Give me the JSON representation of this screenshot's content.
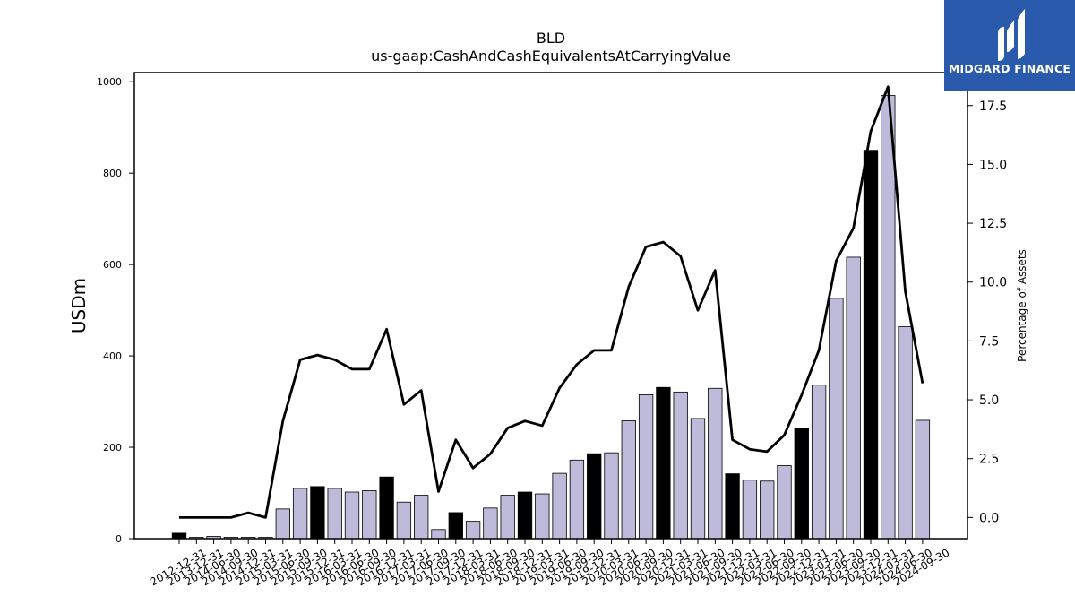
{
  "logo": {
    "name": "MIDGARD FINANCE",
    "bg_color": "#2a5aab"
  },
  "chart_data": {
    "type": "bar",
    "title": "BLD",
    "subtitle": "us-gaap:CashAndCashEquivalentsAtCarryingValue",
    "ylabel": "USDm",
    "y2label": "Percentage of Assets",
    "ylim": [
      0,
      1020
    ],
    "y2lim": [
      -0.9,
      18.9
    ],
    "yticks": [
      0,
      200,
      400,
      600,
      800,
      1000
    ],
    "y2ticks": [
      "0.0",
      "2.5",
      "5.0",
      "7.5",
      "10.0",
      "12.5",
      "15.0",
      "17.5"
    ],
    "categories": [
      "2012-12-31",
      "2013-12-31",
      "2014-06-30",
      "2014-09-30",
      "2014-12-31",
      "2015-03-31",
      "2015-06-30",
      "2015-09-30",
      "2015-12-31",
      "2016-03-31",
      "2016-06-30",
      "2016-09-30",
      "2016-12-31",
      "2017-03-31",
      "2017-06-30",
      "2017-09-30",
      "2017-12-31",
      "2018-03-31",
      "2018-06-30",
      "2018-09-30",
      "2018-12-31",
      "2019-03-31",
      "2019-06-30",
      "2019-09-30",
      "2019-12-31",
      "2020-03-31",
      "2020-06-30",
      "2020-09-30",
      "2020-12-31",
      "2021-03-31",
      "2021-06-30",
      "2021-09-30",
      "2021-12-31",
      "2022-03-31",
      "2022-06-30",
      "2022-09-30",
      "2022-12-31",
      "2023-03-31",
      "2023-06-30",
      "2023-09-30",
      "2023-12-31",
      "2024-03-31",
      "2024-06-30",
      "2024-09-30"
    ],
    "series": [
      {
        "kind": "bar",
        "values": [
          12,
          3,
          5,
          3,
          3,
          3,
          65,
          110,
          114,
          110,
          102,
          105,
          135,
          80,
          95,
          20,
          57,
          38,
          67,
          95,
          102,
          98,
          143,
          172,
          186,
          188,
          258,
          315,
          331,
          321,
          263,
          329,
          142,
          128,
          126,
          160,
          242,
          336,
          526,
          616,
          850,
          970,
          464,
          259
        ],
        "bar_color": "#bebad9",
        "highlight_color": "#000000",
        "highlight_categories": [
          "2012-12-31",
          "2015-12-31",
          "2016-12-31",
          "2017-12-31",
          "2018-12-31",
          "2019-12-31",
          "2020-12-31",
          "2021-12-31",
          "2022-12-31",
          "2023-12-31"
        ]
      },
      {
        "kind": "line",
        "axis": "right",
        "color": "#000000",
        "values": [
          0.0,
          0.0,
          0.0,
          0.0,
          0.2,
          0.0,
          4.1,
          6.7,
          6.9,
          6.7,
          6.3,
          6.3,
          8.0,
          4.8,
          5.4,
          1.1,
          3.3,
          2.1,
          2.7,
          3.8,
          4.1,
          3.9,
          5.5,
          6.5,
          7.1,
          7.1,
          9.8,
          11.5,
          11.7,
          11.1,
          8.8,
          10.5,
          3.3,
          2.9,
          2.8,
          3.5,
          5.2,
          7.1,
          10.9,
          12.3,
          16.4,
          18.3,
          9.6,
          5.7
        ]
      }
    ]
  }
}
